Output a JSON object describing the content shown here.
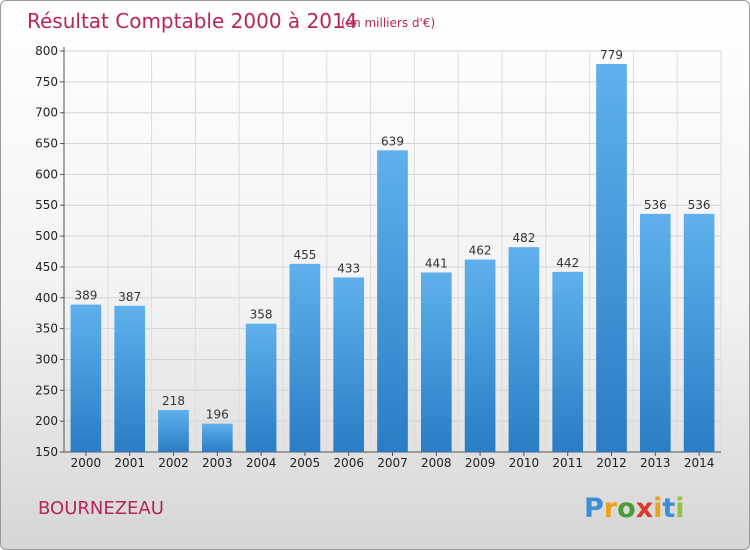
{
  "chart_data": {
    "type": "bar",
    "title": "Résultat Comptable 2000 à 2014",
    "subtitle": "(en milliers d'€)",
    "categories": [
      "2000",
      "2001",
      "2002",
      "2003",
      "2004",
      "2005",
      "2006",
      "2007",
      "2008",
      "2009",
      "2010",
      "2011",
      "2012",
      "2013",
      "2014"
    ],
    "values": [
      389,
      387,
      218,
      196,
      358,
      455,
      433,
      639,
      441,
      462,
      482,
      442,
      779,
      536,
      536
    ],
    "ylim": [
      150,
      800
    ],
    "yticks": [
      150,
      200,
      250,
      300,
      350,
      400,
      450,
      500,
      550,
      600,
      650,
      700,
      750,
      800
    ],
    "grid": true,
    "bar_color": "#3d93d9",
    "title_color": "#b8245c"
  },
  "commune": "BOURNEZEAU",
  "logo": {
    "letters": [
      "P",
      "r",
      "o",
      "x",
      "i",
      "t",
      "i"
    ],
    "colors": [
      "#3b8fd6",
      "#e8a21c",
      "#4a9c3a",
      "#d93a2b",
      "#e8a21c",
      "#3b8fd6",
      "#8dc63f"
    ]
  }
}
